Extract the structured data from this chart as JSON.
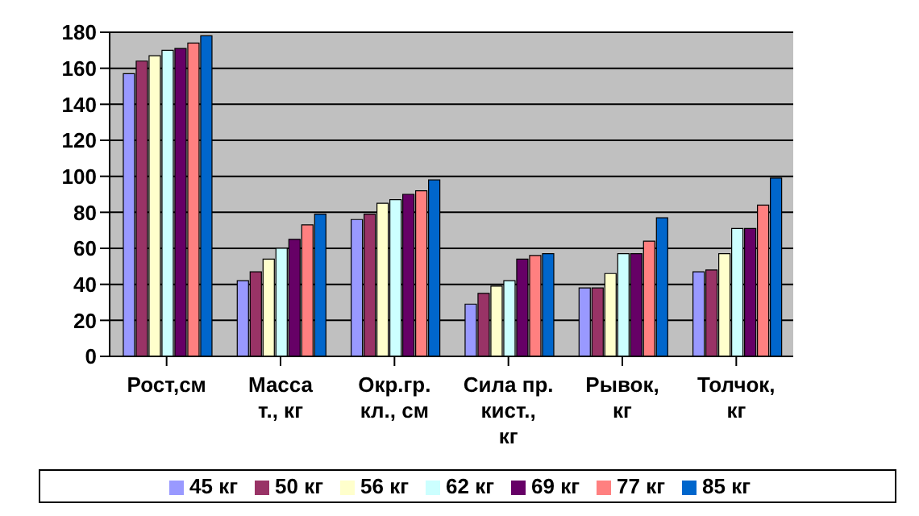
{
  "chart_data": {
    "type": "bar",
    "categories": [
      "Рост,см",
      "Масса т., кг",
      "Окр.гр. кл., см",
      "Сила пр. кист., кг",
      "Рывок, кг",
      "Толчок, кг"
    ],
    "series": [
      {
        "name": "45 кг",
        "color": "#9999ff",
        "values": [
          157,
          42,
          76,
          29,
          38,
          47
        ]
      },
      {
        "name": "50 кг",
        "color": "#993366",
        "values": [
          164,
          47,
          79,
          35,
          38,
          48
        ]
      },
      {
        "name": "56 кг",
        "color": "#ffffcc",
        "values": [
          167,
          54,
          85,
          39,
          46,
          57
        ]
      },
      {
        "name": "62 кг",
        "color": "#ccffff",
        "values": [
          170,
          60,
          87,
          42,
          57,
          71
        ]
      },
      {
        "name": "69 кг",
        "color": "#660066",
        "values": [
          171,
          65,
          90,
          54,
          57,
          71
        ]
      },
      {
        "name": "77 кг",
        "color": "#ff8080",
        "values": [
          174,
          73,
          92,
          56,
          64,
          84
        ]
      },
      {
        "name": "85 кг",
        "color": "#0066cc",
        "values": [
          178,
          79,
          98,
          57,
          77,
          99
        ]
      }
    ],
    "ylim": [
      0,
      180
    ],
    "yticks": [
      0,
      20,
      40,
      60,
      80,
      100,
      120,
      140,
      160,
      180
    ],
    "grid": "y",
    "legend": "bottom"
  }
}
